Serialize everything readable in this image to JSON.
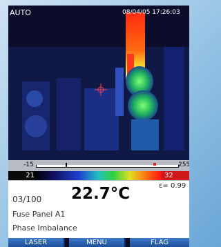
{
  "header": {
    "mode": "AUTO",
    "datetime": "08/04/05 17:26:03"
  },
  "scale": {
    "min": "-15",
    "max": "255",
    "low": "21",
    "high": "32"
  },
  "emissivity": "ε= 0.99",
  "image_index": "03/100",
  "temperature": "22.7°C",
  "location": "Fuse Panel A1",
  "note": "Phase Imbalance",
  "buttons": [
    "LASER",
    "MENU",
    "FLAG"
  ]
}
